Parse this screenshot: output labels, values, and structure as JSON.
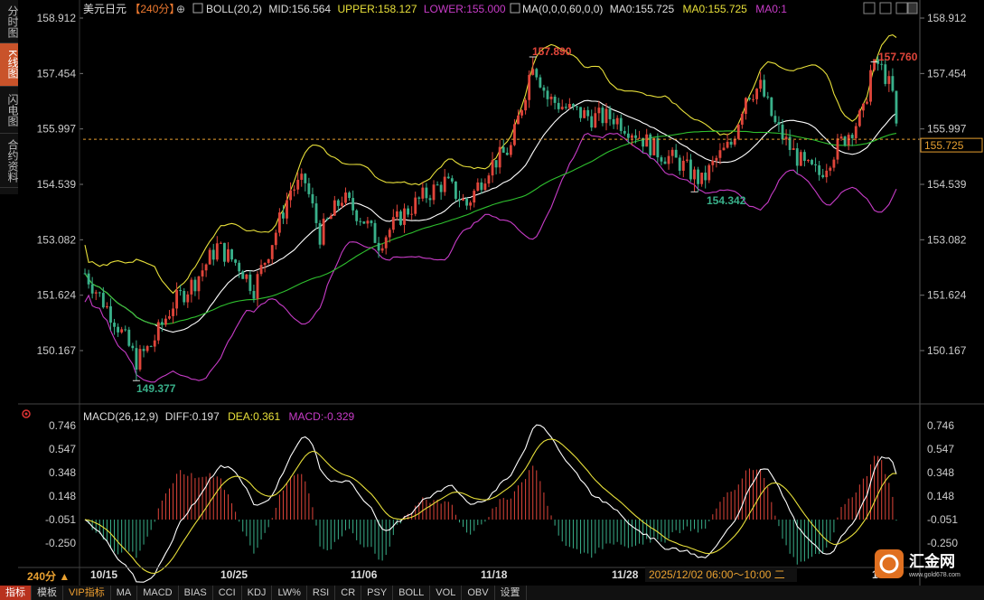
{
  "left_tabs": [
    {
      "label": "分时图",
      "active": false
    },
    {
      "label": "K线图",
      "active": true
    },
    {
      "label": "闪电图",
      "active": false
    },
    {
      "label": "合约资料",
      "active": false
    }
  ],
  "header": {
    "symbol": "美元日元",
    "period": "【240分】",
    "boll": "BOLL(20,2)",
    "mid": "MID:156.564",
    "upper": "UPPER:158.127",
    "lower": "LOWER:155.000",
    "ma": "MA(0,0,0,60,0,0)",
    "ma0a": "MA0:155.725",
    "ma0b": "MA0:155.725",
    "ma0c": "MA0:1"
  },
  "price_axis": {
    "ticks": [
      158.912,
      157.454,
      155.997,
      154.539,
      153.082,
      151.624,
      150.167
    ],
    "ylim": [
      149.0,
      159.3
    ],
    "current": "155.725"
  },
  "annotations": {
    "high_left": "157.890",
    "high_right": "157.760",
    "low_left": "149.377",
    "low_mid": "154.342"
  },
  "macd": {
    "header": "MACD(26,12,9)",
    "diff": "DIFF:0.197",
    "dea": "DEA:0.361",
    "macd": "MACD:-0.329",
    "ticks": [
      "0.746",
      "0.547",
      "0.348",
      "0.148",
      "-0.051",
      "-0.250"
    ],
    "ylim": [
      -0.33,
      0.76
    ]
  },
  "dates": [
    "10/15",
    "10/25",
    "11/06",
    "11/18",
    "11/28",
    "1"
  ],
  "cursor_label": "2025/12/02 06:00～10:00 二",
  "period_label": "240分 ▲",
  "bottom_tabs": [
    "指标",
    "模板",
    "VIP指标",
    "MA",
    "MACD",
    "BIAS",
    "CCI",
    "KDJ",
    "LW%",
    "RSI",
    "CR",
    "PSY",
    "BOLL",
    "VOL",
    "OBV",
    "设置"
  ],
  "logo_text": "汇金网",
  "logo_url": "www.gold678.com",
  "colors": {
    "up": "#e0453a",
    "down": "#39b08a",
    "upper": "#e8e03a",
    "lower": "#c83cc8",
    "mid": "#ffffff",
    "ma": "#2ec02e"
  },
  "chart_data": {
    "type": "candlestick",
    "keypoints": [
      [
        0,
        152.2
      ],
      [
        8,
        151.0
      ],
      [
        14,
        149.9
      ],
      [
        18,
        150.3
      ],
      [
        24,
        151.4
      ],
      [
        30,
        152.0
      ],
      [
        36,
        152.9
      ],
      [
        42,
        152.4
      ],
      [
        46,
        151.8
      ],
      [
        52,
        153.3
      ],
      [
        56,
        154.4
      ],
      [
        60,
        154.6
      ],
      [
        64,
        153.2
      ],
      [
        70,
        154.2
      ],
      [
        76,
        153.6
      ],
      [
        80,
        153.0
      ],
      [
        86,
        153.7
      ],
      [
        92,
        154.2
      ],
      [
        98,
        154.6
      ],
      [
        104,
        154.0
      ],
      [
        110,
        155.0
      ],
      [
        116,
        155.5
      ],
      [
        120,
        157.0
      ],
      [
        122,
        157.8
      ],
      [
        126,
        156.8
      ],
      [
        132,
        156.5
      ],
      [
        138,
        156.3
      ],
      [
        144,
        156.3
      ],
      [
        150,
        155.9
      ],
      [
        156,
        155.4
      ],
      [
        162,
        155.1
      ],
      [
        168,
        154.6
      ],
      [
        172,
        155.2
      ],
      [
        176,
        155.6
      ],
      [
        180,
        156.9
      ],
      [
        184,
        157.1
      ],
      [
        188,
        156.1
      ],
      [
        192,
        155.5
      ],
      [
        196,
        155.0
      ],
      [
        200,
        154.8
      ],
      [
        204,
        155.4
      ],
      [
        208,
        155.9
      ],
      [
        212,
        156.4
      ],
      [
        214,
        157.5
      ],
      [
        216,
        157.7
      ],
      [
        218,
        157.4
      ],
      [
        220,
        156.9
      ],
      [
        221,
        156.0
      ]
    ],
    "highs": [
      {
        "index": 122,
        "value": 157.89
      },
      {
        "index": 215,
        "value": 157.76
      }
    ],
    "lows": [
      {
        "index": 14,
        "value": 149.377
      },
      {
        "index": 166,
        "value": 154.342
      }
    ],
    "current_price": 155.725
  }
}
